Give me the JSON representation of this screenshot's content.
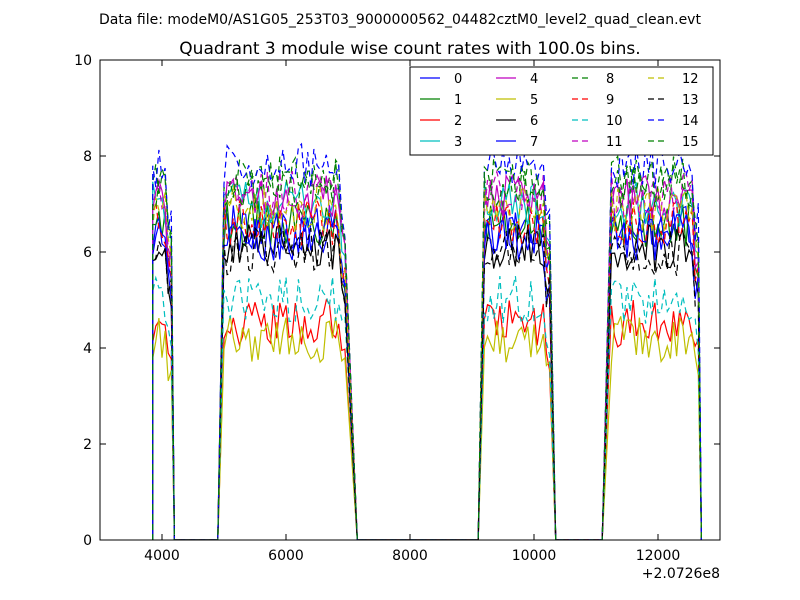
{
  "figure_title": "Data file: modeM0/AS1G05_253T03_9000000562_04482cztM0_level2_quad_clean.evt",
  "colors": {
    "series": [
      "#0000ff",
      "#008000",
      "#ff0000",
      "#00bfbf",
      "#bf00bf",
      "#bfbf00",
      "#000000",
      "#0000ff",
      "#008000",
      "#ff0000",
      "#00bfbf",
      "#bf00bf",
      "#bfbf00",
      "#000000",
      "#0000ff",
      "#008000"
    ],
    "axes": "#000000",
    "legend_border": "#000000",
    "background": "#ffffff"
  },
  "chart_data": {
    "type": "line",
    "title": "Quadrant 3 module wise count rates with 100.0s bins.",
    "xlabel": "",
    "ylabel": "",
    "x_offset_label": "+2.0726e8",
    "xlim": [
      3000,
      13000
    ],
    "ylim": [
      0,
      10
    ],
    "xticks": [
      4000,
      6000,
      8000,
      10000,
      12000
    ],
    "yticks": [
      0,
      2,
      4,
      6,
      8,
      10
    ],
    "legend": {
      "position": "top-right",
      "columns": 4
    },
    "segments": [
      {
        "x_start": 3850,
        "rise": 3850,
        "fall": 4150,
        "x_end": 4200
      },
      {
        "x_start": 4900,
        "rise": 5000,
        "fall": 6950,
        "x_end": 7150
      },
      {
        "x_start": 9100,
        "rise": 9200,
        "fall": 10250,
        "x_end": 10350
      },
      {
        "x_start": 11100,
        "rise": 11250,
        "fall": 12650,
        "x_end": 12700
      }
    ],
    "series": [
      {
        "name": "0",
        "style": "solid",
        "level": 6.5
      },
      {
        "name": "1",
        "style": "solid",
        "level": 6.6
      },
      {
        "name": "2",
        "style": "solid",
        "level": 4.5
      },
      {
        "name": "3",
        "style": "solid",
        "level": 7.0
      },
      {
        "name": "4",
        "style": "solid",
        "level": 7.1
      },
      {
        "name": "5",
        "style": "solid",
        "level": 4.2
      },
      {
        "name": "6",
        "style": "solid",
        "level": 6.1
      },
      {
        "name": "7",
        "style": "solid",
        "level": 6.3
      },
      {
        "name": "8",
        "style": "dashed",
        "level": 7.5
      },
      {
        "name": "9",
        "style": "dashed",
        "level": 6.6
      },
      {
        "name": "10",
        "style": "dashed",
        "level": 5.0
      },
      {
        "name": "11",
        "style": "dashed",
        "level": 7.2
      },
      {
        "name": "12",
        "style": "dashed",
        "level": 6.9
      },
      {
        "name": "13",
        "style": "dashed",
        "level": 6.0
      },
      {
        "name": "14",
        "style": "dashed",
        "level": 7.8
      },
      {
        "name": "15",
        "style": "dashed",
        "level": 7.4
      }
    ]
  }
}
